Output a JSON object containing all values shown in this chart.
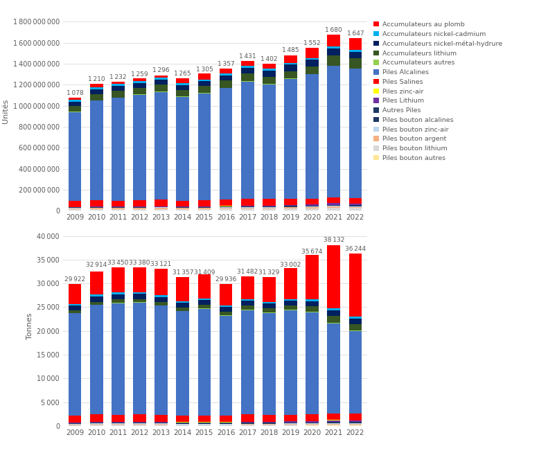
{
  "years": [
    2009,
    2010,
    2011,
    2012,
    2013,
    2014,
    2015,
    2016,
    2017,
    2018,
    2019,
    2020,
    2021,
    2022
  ],
  "totals_units_label": [
    "1 078",
    "1 210",
    "1 232",
    "1 259",
    "1 296",
    "1 265",
    "1 305",
    "1 357",
    "1 431",
    "1 402",
    "1 485",
    "1 552",
    "1 680",
    "1 647"
  ],
  "totals_tonnes_label": [
    "29 922",
    "32 914",
    "33 450",
    "33 380",
    "33 121",
    "31 357",
    "31 409",
    "29 936",
    "31 482",
    "31 329",
    "33 002",
    "35 674",
    "38 132",
    "36 244"
  ],
  "stack_order_units": [
    "Piles bouton autres",
    "Piles bouton lithium",
    "Piles bouton argent",
    "Piles bouton zinc-air",
    "Piles bouton alcalines",
    "Autres Piles",
    "Piles Lithium",
    "Piles zinc-air",
    "Piles Salines",
    "Piles Alcalines",
    "Accumulateurs autres",
    "Accumulateurs lithium",
    "Accumulateurs nickel-metal-hydrure",
    "Accumulateurs nickel-cadmium",
    "Accumulateurs au plomb"
  ],
  "colors_map": {
    "Accumulateurs au plomb": "#FF0000",
    "Accumulateurs nickel-cadmium": "#00B0F0",
    "Accumulateurs nickel-metal-hydrure": "#002060",
    "Accumulateurs lithium": "#375623",
    "Accumulateurs autres": "#92D050",
    "Piles Alcalines": "#4472C4",
    "Piles Salines": "#FF0000",
    "Piles zinc-air": "#FFFF00",
    "Piles Lithium": "#7030A0",
    "Autres Piles": "#1F3864",
    "Piles bouton alcalines": "#203864",
    "Piles bouton zinc-air": "#BDD7EE",
    "Piles bouton argent": "#F4B183",
    "Piles bouton lithium": "#D9D9D9",
    "Piles bouton autres": "#FFE699"
  },
  "data_units": {
    "Piles bouton autres": [
      2000000.0,
      2000000.0,
      2000000.0,
      2000000.0,
      2000000.0,
      2000000.0,
      2000000.0,
      2000000.0,
      2000000.0,
      2000000.0,
      2000000.0,
      2000000.0,
      3000000.0,
      3000000.0
    ],
    "Piles bouton lithium": [
      12000000.0,
      14000000.0,
      14000000.0,
      14000000.0,
      15000000.0,
      14000000.0,
      15000000.0,
      16000000.0,
      18000000.0,
      18000000.0,
      19000000.0,
      21000000.0,
      24000000.0,
      22000000.0
    ],
    "Piles bouton argent": [
      8000000.0,
      9000000.0,
      9000000.0,
      9000000.0,
      9000000.0,
      8000000.0,
      8000000.0,
      9000000.0,
      10000000.0,
      10000000.0,
      10000000.0,
      11000000.0,
      12000000.0,
      11000000.0
    ],
    "Piles bouton zinc-air": [
      4000000.0,
      5000000.0,
      5000000.0,
      5000000.0,
      5000000.0,
      5000000.0,
      5000000.0,
      5000000.0,
      6000000.0,
      6000000.0,
      6000000.0,
      7000000.0,
      8000000.0,
      7000000.0
    ],
    "Piles bouton alcalines": [
      2000000.0,
      2000000.0,
      2000000.0,
      2000000.0,
      2000000.0,
      2000000.0,
      2000000.0,
      2000000.0,
      2000000.0,
      2000000.0,
      2000000.0,
      2000000.0,
      2000000.0,
      2000000.0
    ],
    "Autres Piles": [
      3000000.0,
      3000000.0,
      3000000.0,
      3000000.0,
      4000000.0,
      4000000.0,
      4000000.0,
      4000000.0,
      5000000.0,
      5000000.0,
      5000000.0,
      5000000.0,
      6000000.0,
      6000000.0
    ],
    "Piles Lithium": [
      3000000.0,
      3000000.0,
      3000000.0,
      4000000.0,
      4000000.0,
      4000000.0,
      5000000.0,
      5000000.0,
      6000000.0,
      6000000.0,
      8000000.0,
      10000000.0,
      18000000.0,
      15000000.0
    ],
    "Piles zinc-air": [
      1000000.0,
      1000000.0,
      1000000.0,
      1000000.0,
      1000000.0,
      1000000.0,
      1000000.0,
      1000000.0,
      1000000.0,
      1000000.0,
      1000000.0,
      1000000.0,
      1000000.0,
      1000000.0
    ],
    "Piles Salines": [
      55000000.0,
      60000000.0,
      55000000.0,
      60000000.0,
      65000000.0,
      55000000.0,
      55000000.0,
      60000000.0,
      65000000.0,
      60000000.0,
      60000000.0,
      55000000.0,
      55000000.0,
      55000000.0
    ],
    "Piles Alcalines": [
      850000000.0,
      950000000.0,
      980000000.0,
      1005000000.0,
      1025000000.0,
      990000000.0,
      1020000000.0,
      1065000000.0,
      1115000000.0,
      1095000000.0,
      1145000000.0,
      1185000000.0,
      1250000000.0,
      1230000000.0
    ],
    "Accumulateurs autres": [
      3000000.0,
      3000000.0,
      3000000.0,
      3000000.0,
      3000000.0,
      3000000.0,
      3000000.0,
      3000000.0,
      3000000.0,
      3000000.0,
      3000000.0,
      3000000.0,
      4000000.0,
      4000000.0
    ],
    "Accumulateurs lithium": [
      55000000.0,
      60000000.0,
      65000000.0,
      62000000.0,
      67000000.0,
      62000000.0,
      67000000.0,
      67000000.0,
      72000000.0,
      68000000.0,
      70000000.0,
      75000000.0,
      100000000.0,
      100000000.0
    ],
    "Accumulateurs nickel-metal-hydrure": [
      42000000.0,
      47000000.0,
      47000000.0,
      47000000.0,
      47000000.0,
      47000000.0,
      47000000.0,
      52000000.0,
      57000000.0,
      57000000.0,
      60000000.0,
      60000000.0,
      65000000.0,
      60000000.0
    ],
    "Accumulateurs nickel-cadmium": [
      15000000.0,
      18000000.0,
      18000000.0,
      17000000.0,
      17000000.0,
      16000000.0,
      16000000.0,
      18000000.0,
      20000000.0,
      18000000.0,
      18000000.0,
      18000000.0,
      20000000.0,
      18000000.0
    ],
    "Accumulateurs au plomb": [
      23000000.0,
      33000000.0,
      24000000.0,
      25000000.0,
      25000000.0,
      52000000.0,
      55000000.0,
      48000000.0,
      45000000.0,
      50000000.0,
      74000000.0,
      97000000.0,
      112000000.0,
      113000000.0
    ]
  },
  "data_tonnes": {
    "Piles bouton autres": [
      30,
      35,
      35,
      35,
      35,
      30,
      30,
      30,
      35,
      35,
      35,
      40,
      40,
      40
    ],
    "Piles bouton lithium": [
      150,
      180,
      180,
      180,
      180,
      160,
      160,
      160,
      180,
      180,
      190,
      210,
      230,
      220
    ],
    "Piles bouton argent": [
      120,
      140,
      140,
      140,
      135,
      125,
      125,
      120,
      130,
      130,
      130,
      140,
      150,
      145
    ],
    "Piles bouton zinc-air": [
      120,
      140,
      140,
      140,
      135,
      125,
      125,
      120,
      130,
      130,
      130,
      140,
      150,
      145
    ],
    "Piles bouton alcalines": [
      40,
      45,
      45,
      45,
      45,
      40,
      40,
      40,
      45,
      45,
      45,
      50,
      55,
      55
    ],
    "Autres Piles": [
      150,
      180,
      180,
      180,
      170,
      160,
      160,
      155,
      170,
      165,
      165,
      170,
      185,
      180
    ],
    "Piles Lithium": [
      80,
      100,
      110,
      110,
      110,
      110,
      120,
      140,
      160,
      165,
      220,
      270,
      380,
      360
    ],
    "Piles zinc-air": [
      25,
      28,
      28,
      28,
      27,
      25,
      25,
      25,
      27,
      27,
      27,
      30,
      33,
      32
    ],
    "Piles Salines": [
      1500,
      1600,
      1500,
      1600,
      1500,
      1400,
      1400,
      1400,
      1500,
      1400,
      1400,
      1400,
      1400,
      1350
    ],
    "Piles Alcalines": [
      21500,
      23000,
      23500,
      23500,
      23000,
      22000,
      22500,
      21000,
      22000,
      21500,
      22000,
      21500,
      19000,
      17500
    ],
    "Accumulateurs autres": [
      80,
      100,
      100,
      95,
      90,
      85,
      85,
      85,
      90,
      90,
      90,
      95,
      105,
      100
    ],
    "Accumulateurs lithium": [
      500,
      600,
      650,
      650,
      650,
      650,
      700,
      800,
      850,
      850,
      900,
      1100,
      1400,
      1350
    ],
    "Accumulateurs nickel-metal-hydrure": [
      1000,
      1100,
      1100,
      1100,
      1050,
      1000,
      1000,
      1000,
      1050,
      1050,
      1050,
      1100,
      1200,
      1150
    ],
    "Accumulateurs nickel-cadmium": [
      350,
      380,
      380,
      380,
      370,
      350,
      350,
      350,
      360,
      360,
      360,
      370,
      400,
      385
    ],
    "Accumulateurs au plomb": [
      4277,
      4886,
      5362,
      5197,
      5615,
      5097,
      5114,
      4511,
      4755,
      5202,
      6460,
      9359,
      13309,
      13232
    ]
  },
  "legend_order": [
    "Accumulateurs au plomb",
    "Accumulateurs nickel-cadmium",
    "Accumulateurs nickel-metal-hydrure",
    "Accumulateurs lithium",
    "Accumulateurs autres",
    "Piles Alcalines",
    "Piles Salines",
    "Piles zinc-air",
    "Piles Lithium",
    "Autres Piles",
    "Piles bouton alcalines",
    "Piles bouton zinc-air",
    "Piles bouton argent",
    "Piles bouton lithium",
    "Piles bouton autres"
  ],
  "legend_labels": {
    "Accumulateurs au plomb": "Accumulateurs au plomb",
    "Accumulateurs nickel-cadmium": "Accumulateurs nickel-cadmium",
    "Accumulateurs nickel-metal-hydrure": "Accumulateurs nickel-métal-hydrure",
    "Accumulateurs lithium": "Accumulateurs lithium",
    "Accumulateurs autres": "Accumulateurs autres",
    "Piles Alcalines": "Piles Alcalines",
    "Piles Salines": "Piles Salines",
    "Piles zinc-air": "Piles zinc-air",
    "Piles Lithium": "Piles Lithium",
    "Autres Piles": "Autres Piles",
    "Piles bouton alcalines": "Piles bouton alcalines",
    "Piles bouton zinc-air": "Piles bouton zinc-air",
    "Piles bouton argent": "Piles bouton argent",
    "Piles bouton lithium": "Piles bouton lithium",
    "Piles bouton autres": "Piles bouton autres"
  },
  "totals_units_val": [
    1078000000.0,
    1210000000.0,
    1232000000.0,
    1259000000.0,
    1296000000.0,
    1265000000.0,
    1305000000.0,
    1357000000.0,
    1431000000.0,
    1402000000.0,
    1485000000.0,
    1552000000.0,
    1680000000.0,
    1647000000.0
  ],
  "totals_tonnes_val": [
    29922,
    32914,
    33450,
    33380,
    33121,
    31357,
    31409,
    29936,
    31482,
    31329,
    33002,
    35674,
    38132,
    36244
  ],
  "ylabel_top": "Unités",
  "ylabel_bottom": "Tonnes",
  "background_color": "#ffffff",
  "bar_width": 0.6,
  "ylim_units": [
    0,
    1900000000
  ],
  "ylim_tonnes": [
    0,
    42000
  ]
}
